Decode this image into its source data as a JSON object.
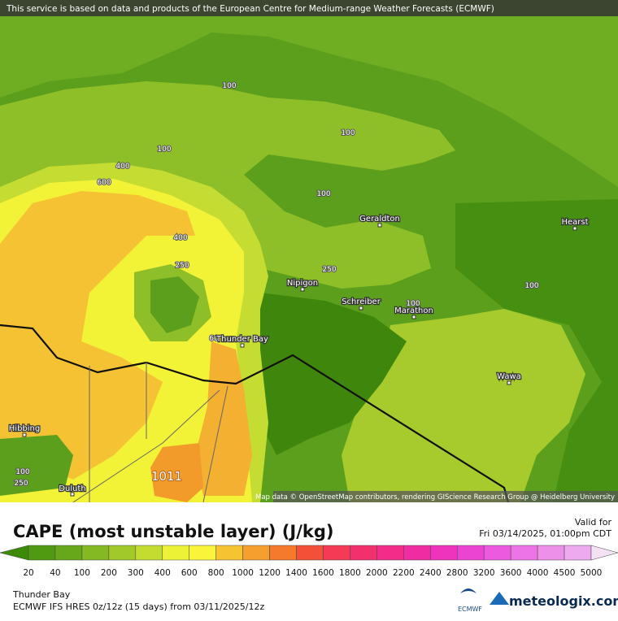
{
  "header": {
    "disclaimer": "This service is based on data and products of the European Centre for Medium-range Weather Forecasts (ECMWF)"
  },
  "map": {
    "cities": [
      "Geraldton",
      "Hearst",
      "Nipigon",
      "Schreiber",
      "Marathon",
      "Thunder Bay",
      "Wawa",
      "Hibbing",
      "Duluth"
    ],
    "contours": [
      "100",
      "100",
      "100",
      "400",
      "600",
      "100",
      "400",
      "250",
      "250",
      "100",
      "100",
      "60",
      "100",
      "250",
      "1011"
    ],
    "attribution": "Map data © OpenStreetMap contributors, rendering GIScience Research Group @ Heidelberg University"
  },
  "footer": {
    "title": "CAPE (most unstable layer) (J/kg)",
    "valid_label": "Valid for",
    "valid_time": "Fri 03/14/2025, 01:00pm CDT",
    "legend": {
      "ticks": [
        20,
        40,
        100,
        200,
        300,
        400,
        600,
        800,
        1000,
        1200,
        1400,
        1600,
        1800,
        2000,
        2200,
        2400,
        2800,
        3200,
        3600,
        4000,
        4500,
        5000
      ],
      "colors": [
        "#3c8a06",
        "#4f9a10",
        "#67a81a",
        "#84b924",
        "#a2c92a",
        "#c4dc30",
        "#ecf236",
        "#f8f53a",
        "#f6c432",
        "#f5a02e",
        "#f57a2c",
        "#f45038",
        "#f43a54",
        "#f2306e",
        "#f22c88",
        "#f02ca2",
        "#ee34bc",
        "#ec44d2",
        "#ec5ae0",
        "#ec74e6",
        "#ec90ea",
        "#eeaaee",
        "#f0c8f0",
        "#f4e2f4"
      ]
    },
    "location": "Thunder Bay",
    "model": "ECMWF IFS HRES 0z/12z (15 days) from  03/11/2025/12z",
    "ecmwf": "ECMWF",
    "brand": "meteologix.com"
  }
}
